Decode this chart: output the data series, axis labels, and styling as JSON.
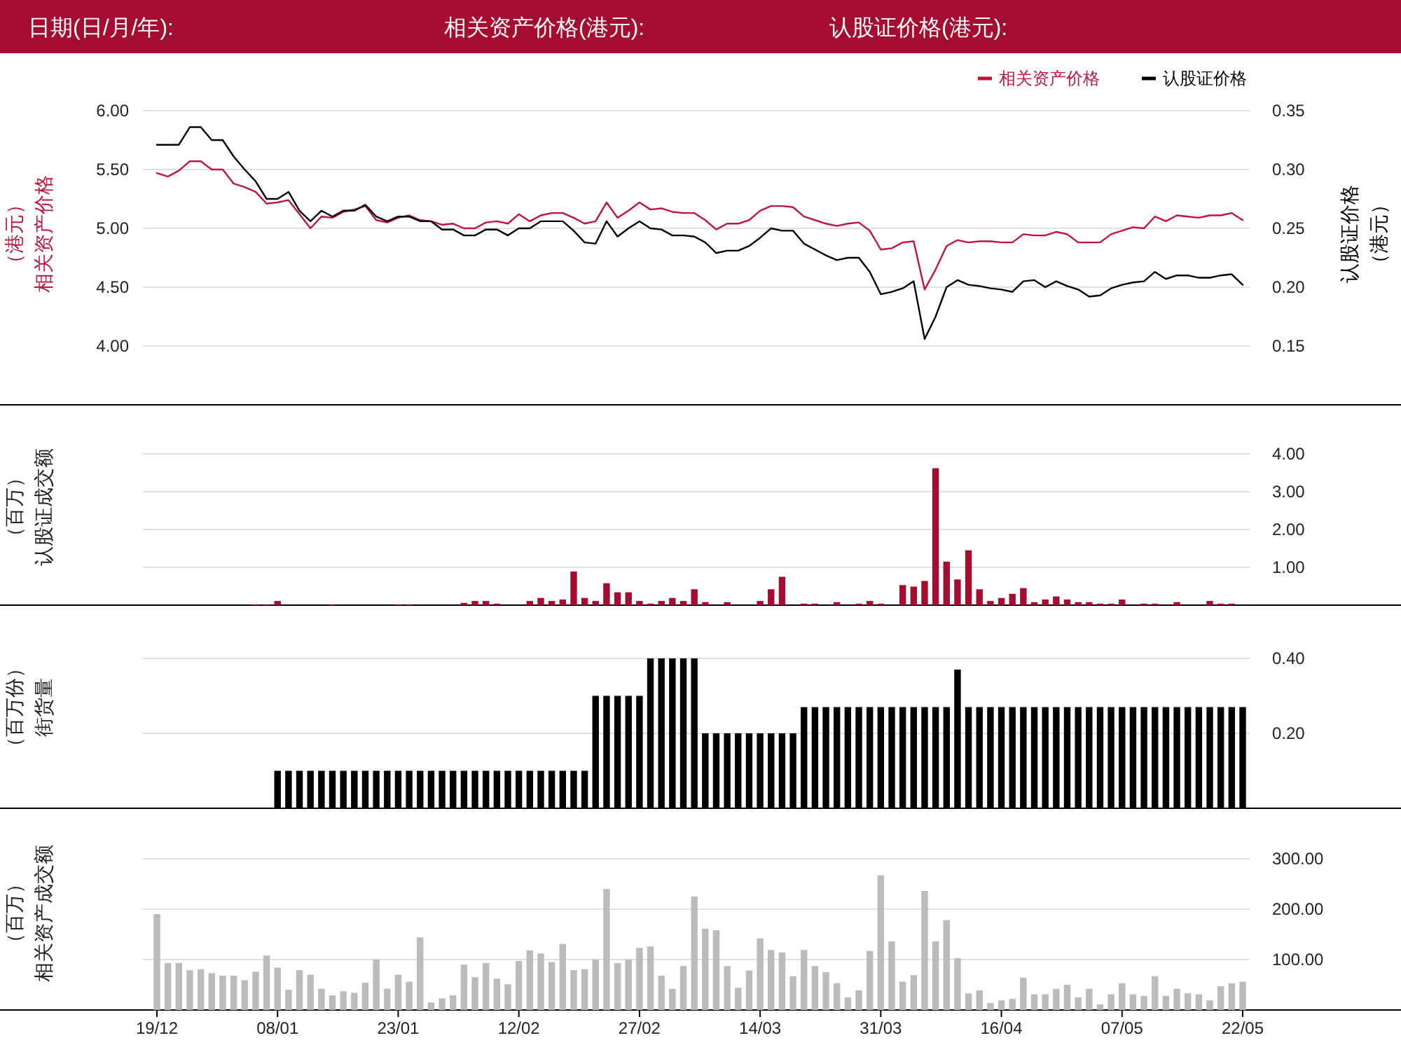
{
  "chart_data": [
    {
      "type": "line",
      "annotations": [
        "日期(日/月/年):",
        "相关资产价格(港元):",
        "认股证价格(港元):"
      ],
      "categories": [
        null,
        null,
        null,
        null,
        null,
        null,
        null,
        null,
        null,
        null,
        null,
        null,
        null,
        null,
        null,
        null,
        null,
        null,
        null,
        null,
        null,
        null,
        null,
        null,
        null,
        null,
        null,
        null,
        null,
        null,
        null,
        null,
        null,
        null,
        null,
        null,
        null,
        null,
        null,
        null,
        null,
        null,
        null,
        null,
        null,
        null,
        null,
        null,
        null,
        null,
        null,
        null,
        null,
        null,
        null,
        null,
        null,
        null,
        null,
        null,
        null,
        null,
        null,
        null,
        null,
        null,
        null,
        null,
        null,
        null,
        null,
        null,
        null,
        null,
        null,
        null,
        null,
        null,
        null,
        null,
        null,
        null,
        null,
        null,
        null,
        null,
        null,
        null,
        null,
        null,
        null,
        null,
        null,
        null,
        null,
        null,
        null,
        null,
        null,
        null
      ],
      "ylabel": "相关资产价格（港元）",
      "y2label": "认股证价格（港元）",
      "ylim": [
        4,
        6
      ],
      "yticks": [
        {
          "value": 4,
          "label": "4.00"
        },
        {
          "value": 4.5,
          "label": "4.50"
        },
        {
          "value": 5,
          "label": "5.00"
        },
        {
          "value": 5.5,
          "label": "5.50"
        },
        {
          "value": 6,
          "label": "6.00"
        }
      ],
      "y2lim": [
        0.15,
        0.35
      ],
      "y2ticks": [
        {
          "value": 0.15,
          "label": "0.15"
        },
        {
          "value": 0.2,
          "label": "0.20"
        },
        {
          "value": 0.25,
          "label": "0.25"
        },
        {
          "value": 0.3,
          "label": "0.30"
        },
        {
          "value": 0.35,
          "label": "0.35"
        }
      ],
      "grid": "y",
      "legend": "top right",
      "tick_labels": "y",
      "series": [
        {
          "name": "相关资产价格",
          "color": "#c0143c",
          "axis": "y",
          "values": [
            5.47,
            5.44,
            5.49,
            5.57,
            5.57,
            5.5,
            5.5,
            5.38,
            5.35,
            5.31,
            5.21,
            5.22,
            5.24,
            5.12,
            5.0,
            5.1,
            5.09,
            5.14,
            5.16,
            5.19,
            5.07,
            5.05,
            5.09,
            5.11,
            5.07,
            5.06,
            5.03,
            5.04,
            5.0,
            5.0,
            5.05,
            5.06,
            5.04,
            5.12,
            5.06,
            5.11,
            5.13,
            5.13,
            5.09,
            5.04,
            5.06,
            5.22,
            5.09,
            5.15,
            5.22,
            5.16,
            5.17,
            5.14,
            5.13,
            5.13,
            5.07,
            4.99,
            5.04,
            5.04,
            5.07,
            5.15,
            5.19,
            5.19,
            5.18,
            5.1,
            5.07,
            5.04,
            5.02,
            5.04,
            5.05,
            4.98,
            4.82,
            4.83,
            4.88,
            4.89,
            4.48,
            4.65,
            4.85,
            4.9,
            4.88,
            4.89,
            4.89,
            4.88,
            4.88,
            4.95,
            4.94,
            4.94,
            4.97,
            4.95,
            4.88,
            4.88,
            4.88,
            4.95,
            4.98,
            5.01,
            5.0,
            5.1,
            5.06,
            5.11,
            5.1,
            5.09,
            5.11,
            5.11,
            5.13,
            5.07
          ]
        },
        {
          "name": "认股证价格",
          "color": "#000000",
          "axis": "y2",
          "values": [
            0.321,
            0.321,
            0.321,
            0.336,
            0.336,
            0.325,
            0.325,
            0.311,
            0.3,
            0.29,
            0.275,
            0.275,
            0.281,
            0.265,
            0.256,
            0.265,
            0.26,
            0.265,
            0.265,
            0.27,
            0.26,
            0.256,
            0.26,
            0.26,
            0.256,
            0.256,
            0.249,
            0.249,
            0.244,
            0.244,
            0.249,
            0.249,
            0.244,
            0.25,
            0.25,
            0.256,
            0.256,
            0.256,
            0.248,
            0.238,
            0.237,
            0.256,
            0.243,
            0.25,
            0.256,
            0.25,
            0.249,
            0.244,
            0.244,
            0.243,
            0.238,
            0.229,
            0.231,
            0.231,
            0.235,
            0.242,
            0.25,
            0.248,
            0.248,
            0.237,
            0.232,
            0.227,
            0.223,
            0.225,
            0.225,
            0.213,
            0.194,
            0.196,
            0.199,
            0.205,
            0.156,
            0.175,
            0.2,
            0.206,
            0.202,
            0.201,
            0.199,
            0.198,
            0.196,
            0.205,
            0.206,
            0.2,
            0.205,
            0.201,
            0.198,
            0.192,
            0.193,
            0.199,
            0.202,
            0.204,
            0.205,
            0.213,
            0.207,
            0.21,
            0.21,
            0.208,
            0.208,
            0.21,
            0.211,
            0.202
          ]
        }
      ]
    },
    {
      "type": "bar",
      "ylabel": "认股证成交额（百万）",
      "color": "#a50d30",
      "categories": [
        null,
        null,
        null,
        null,
        null,
        null,
        null,
        null,
        null,
        null,
        null,
        null,
        null,
        null,
        null,
        null,
        null,
        null,
        null,
        null,
        null,
        null,
        null,
        null,
        null,
        null,
        null,
        null,
        null,
        null,
        null,
        null,
        null,
        null,
        null,
        null,
        null,
        null,
        null,
        null,
        null,
        null,
        null,
        null,
        null,
        null,
        null,
        null,
        null,
        null,
        null,
        null,
        null,
        null,
        null,
        null,
        null,
        null,
        null,
        null,
        null,
        null,
        null,
        null,
        null,
        null,
        null,
        null,
        null,
        null,
        null,
        null,
        null,
        null,
        null,
        null,
        null,
        null,
        null,
        null,
        null,
        null,
        null,
        null,
        null,
        null,
        null,
        null,
        null,
        null,
        null,
        null,
        null,
        null,
        null,
        null,
        null,
        null,
        null,
        null
      ],
      "ylim": [
        0,
        4
      ],
      "yticks": [
        {
          "value": 1,
          "label": "1.00"
        },
        {
          "value": 2,
          "label": "2.00"
        },
        {
          "value": 3,
          "label": "3.00"
        },
        {
          "value": 4,
          "label": "4.00"
        }
      ],
      "grid": "y",
      "tick_labels": "y",
      "values": [
        0,
        0,
        0,
        0,
        0,
        0,
        0,
        0,
        0,
        0.02,
        0.02,
        0.11,
        0,
        0,
        0,
        0,
        0.02,
        0,
        0,
        0,
        0,
        0,
        0.02,
        0.02,
        0,
        0,
        0,
        0,
        0.06,
        0.11,
        0.11,
        0.04,
        0,
        0,
        0.11,
        0.19,
        0.11,
        0.15,
        0.89,
        0.19,
        0.11,
        0.58,
        0.34,
        0.34,
        0.11,
        0.04,
        0.11,
        0.19,
        0.11,
        0.42,
        0.08,
        0,
        0.08,
        0,
        0,
        0.11,
        0.42,
        0.75,
        0,
        0.04,
        0.04,
        0,
        0.08,
        0,
        0.04,
        0.11,
        0.04,
        0,
        0.53,
        0.49,
        0.64,
        3.62,
        1.15,
        0.68,
        1.45,
        0.42,
        0.11,
        0.19,
        0.3,
        0.45,
        0.08,
        0.15,
        0.23,
        0.15,
        0.08,
        0.08,
        0.04,
        0.04,
        0.15,
        0,
        0.04,
        0.04,
        0,
        0.08,
        0,
        0,
        0.11,
        0.04,
        0.04,
        0
      ]
    },
    {
      "type": "bar",
      "ylabel": "街货量（百万份）",
      "color": "#000000",
      "categories": [
        null,
        null,
        null,
        null,
        null,
        null,
        null,
        null,
        null,
        null,
        null,
        null,
        null,
        null,
        null,
        null,
        null,
        null,
        null,
        null,
        null,
        null,
        null,
        null,
        null,
        null,
        null,
        null,
        null,
        null,
        null,
        null,
        null,
        null,
        null,
        null,
        null,
        null,
        null,
        null,
        null,
        null,
        null,
        null,
        null,
        null,
        null,
        null,
        null,
        null,
        null,
        null,
        null,
        null,
        null,
        null,
        null,
        null,
        null,
        null,
        null,
        null,
        null,
        null,
        null,
        null,
        null,
        null,
        null,
        null,
        null,
        null,
        null,
        null,
        null,
        null,
        null,
        null,
        null,
        null,
        null,
        null,
        null,
        null,
        null,
        null,
        null,
        null,
        null,
        null,
        null,
        null,
        null,
        null,
        null,
        null,
        null,
        null,
        null,
        null
      ],
      "ylim": [
        0,
        0.4
      ],
      "yticks": [
        {
          "value": 0.2,
          "label": "0.20"
        },
        {
          "value": 0.4,
          "label": "0.40"
        }
      ],
      "grid": "y",
      "tick_labels": "y",
      "values": [
        0,
        0,
        0,
        0,
        0,
        0,
        0,
        0,
        0,
        0,
        0,
        0.1,
        0.1,
        0.1,
        0.1,
        0.1,
        0.1,
        0.1,
        0.1,
        0.1,
        0.1,
        0.1,
        0.1,
        0.1,
        0.1,
        0.1,
        0.1,
        0.1,
        0.1,
        0.1,
        0.1,
        0.1,
        0.1,
        0.1,
        0.1,
        0.1,
        0.1,
        0.1,
        0.1,
        0.1,
        0.3,
        0.3,
        0.3,
        0.3,
        0.3,
        0.4,
        0.4,
        0.4,
        0.4,
        0.4,
        0.2,
        0.2,
        0.2,
        0.2,
        0.2,
        0.2,
        0.2,
        0.2,
        0.2,
        0.27,
        0.27,
        0.27,
        0.27,
        0.27,
        0.27,
        0.27,
        0.27,
        0.27,
        0.27,
        0.27,
        0.27,
        0.27,
        0.27,
        0.37,
        0.27,
        0.27,
        0.27,
        0.27,
        0.27,
        0.27,
        0.27,
        0.27,
        0.27,
        0.27,
        0.27,
        0.27,
        0.27,
        0.27,
        0.27,
        0.27,
        0.27,
        0.27,
        0.27,
        0.27,
        0.27,
        0.27,
        0.27,
        0.27,
        0.27,
        0.27
      ]
    },
    {
      "type": "bar",
      "ylabel": "相关资产成交额（百万）",
      "color": "#bbbbbb",
      "categories": [
        "19/12",
        null,
        null,
        null,
        null,
        null,
        null,
        null,
        null,
        null,
        null,
        "08/01",
        null,
        null,
        null,
        null,
        null,
        null,
        null,
        null,
        null,
        null,
        "23/01",
        null,
        null,
        null,
        null,
        null,
        null,
        null,
        null,
        null,
        null,
        "12/02",
        null,
        null,
        null,
        null,
        null,
        null,
        null,
        null,
        null,
        null,
        "27/02",
        null,
        null,
        null,
        null,
        null,
        null,
        null,
        null,
        null,
        null,
        "14/03",
        null,
        null,
        null,
        null,
        null,
        null,
        null,
        null,
        null,
        null,
        "31/03",
        null,
        null,
        null,
        null,
        null,
        null,
        null,
        null,
        null,
        null,
        "16/04",
        null,
        null,
        null,
        null,
        null,
        null,
        null,
        null,
        null,
        null,
        "07/05",
        null,
        null,
        null,
        null,
        null,
        null,
        null,
        null,
        null,
        null,
        "22/05"
      ],
      "ylim": [
        0,
        300
      ],
      "yticks": [
        {
          "value": 100,
          "label": "100.00"
        },
        {
          "value": 200,
          "label": "200.00"
        },
        {
          "value": 300,
          "label": "300.00"
        }
      ],
      "grid": "y",
      "values": [
        190,
        93,
        93,
        79,
        81,
        73,
        68,
        68,
        59,
        76,
        108,
        84,
        40,
        79,
        70,
        42,
        29,
        37,
        34,
        54,
        100,
        42,
        70,
        56,
        144,
        15,
        23,
        29,
        90,
        65,
        93,
        62,
        51,
        97,
        118,
        112,
        95,
        131,
        79,
        81,
        100,
        240,
        93,
        100,
        123,
        126,
        68,
        42,
        87,
        225,
        161,
        158,
        87,
        44,
        78,
        142,
        119,
        114,
        67,
        119,
        87,
        75,
        53,
        25,
        39,
        117,
        267,
        136,
        56,
        69,
        236,
        136,
        178,
        103,
        33,
        39,
        14,
        19,
        22,
        64,
        31,
        31,
        42,
        50,
        25,
        42,
        11,
        31,
        53,
        31,
        28,
        67,
        28,
        42,
        33,
        31,
        19,
        47,
        53,
        56
      ]
    }
  ]
}
